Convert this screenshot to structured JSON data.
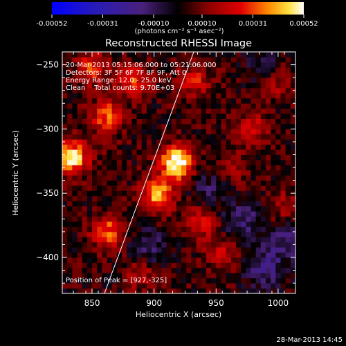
{
  "chart_data": {
    "type": "heatmap",
    "title": "Reconstructed RHESSI Image",
    "xlabel": "Heliocentric X (arcsec)",
    "ylabel": "Heliocentric Y (arcsec)",
    "xlim": [
      826,
      1014
    ],
    "ylim": [
      -428,
      -240
    ],
    "x_ticks": [
      850,
      900,
      950,
      1000
    ],
    "y_ticks": [
      -250,
      -300,
      -350,
      -400
    ],
    "colorbar": {
      "min": -0.00052,
      "max": 0.00052,
      "tick_values": [
        -0.00052,
        -0.00031,
        -0.0001,
        0.0001,
        0.00031,
        0.00052
      ],
      "tick_labels": [
        "-0.00052",
        "-0.00031",
        "-0.00010",
        "0.00010",
        "0.00031",
        "0.00052"
      ],
      "unit_label": "(photons cm⁻² s⁻¹ asec⁻²)"
    },
    "annotations": [
      "20-Mar-2013 05:15:06.000 to 05:21:06.000",
      "Detectors: 3F 5F 6F 7F 8F 9F, Att 0",
      "Energy Range: 12.0 - 25.0 keV",
      "Clean    Total counts: 9.70E+03"
    ],
    "peak_label": "Position of Peak = [927,-325]",
    "peak": [
      927,
      -325
    ],
    "limb_line": [
      [
        860,
        -428
      ],
      [
        932,
        -240
      ]
    ],
    "sources": [
      {
        "x": 918,
        "y": -326,
        "value": 0.00052
      },
      {
        "x": 834,
        "y": -322,
        "value": 0.00045
      },
      {
        "x": 903,
        "y": -352,
        "value": 0.0004
      },
      {
        "x": 863,
        "y": -380,
        "value": 0.0003
      },
      {
        "x": 862,
        "y": -290,
        "value": 0.0003
      },
      {
        "x": 883,
        "y": -262,
        "value": 0.00026
      },
      {
        "x": 850,
        "y": -252,
        "value": 0.00024
      },
      {
        "x": 938,
        "y": -372,
        "value": 0.00022
      },
      {
        "x": 955,
        "y": -396,
        "value": 0.00018
      },
      {
        "x": 932,
        "y": -262,
        "value": 0.0002
      },
      {
        "x": 980,
        "y": -300,
        "value": 0.00018
      },
      {
        "x": 1000,
        "y": -262,
        "value": 0.00016
      },
      {
        "x": 890,
        "y": -412,
        "value": 0.00016
      },
      {
        "x": 1004,
        "y": -360,
        "value": 0.00014
      },
      {
        "x": 965,
        "y": -330,
        "value": 0.00012
      }
    ],
    "holes": [
      {
        "x": 990,
        "y": -408,
        "value": -0.0002
      },
      {
        "x": 972,
        "y": -372,
        "value": -0.00018
      },
      {
        "x": 895,
        "y": -392,
        "value": -0.00015
      },
      {
        "x": 945,
        "y": -348,
        "value": -0.00012
      },
      {
        "x": 1008,
        "y": -385,
        "value": -0.00016
      },
      {
        "x": 990,
        "y": -250,
        "value": -0.00012
      }
    ],
    "grid": false
  },
  "footer": {
    "date": "28-Mar-2013 14:45"
  }
}
